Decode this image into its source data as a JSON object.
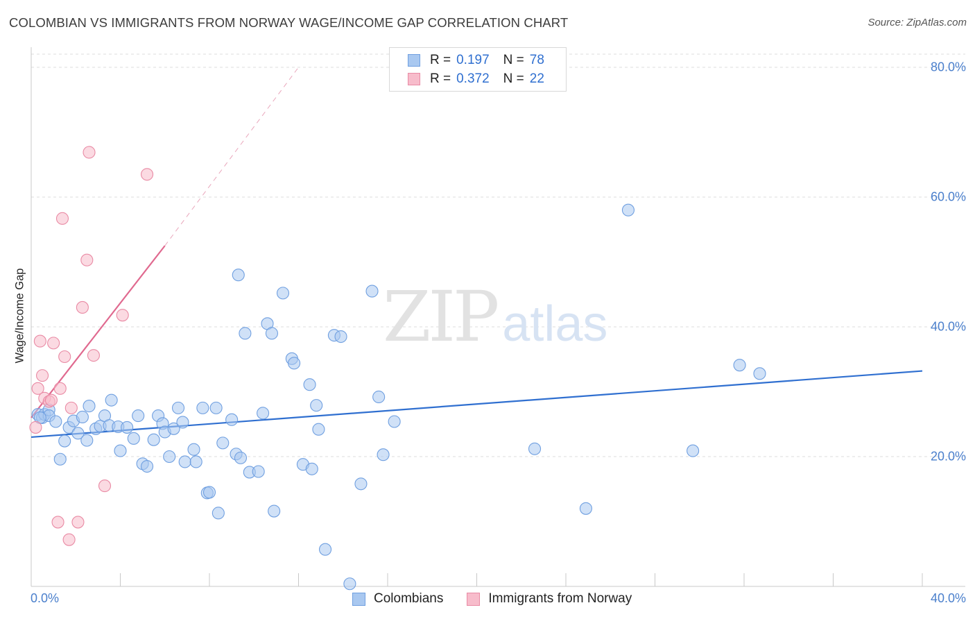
{
  "title": "COLOMBIAN VS IMMIGRANTS FROM NORWAY WAGE/INCOME GAP CORRELATION CHART",
  "source": "Source: ZipAtlas.com",
  "watermark": {
    "zip": "ZIP",
    "atlas": "atlas"
  },
  "legend": {
    "rows": [
      {
        "r_label": "R =",
        "r_value": "0.197",
        "n_label": "N =",
        "n_value": "78",
        "color": "#a9c8f0",
        "border": "#6f9fe0"
      },
      {
        "r_label": "R =",
        "r_value": "0.372",
        "n_label": "N =",
        "n_value": "22",
        "color": "#f7bccb",
        "border": "#e98aa4"
      }
    ]
  },
  "bottom_legend": [
    {
      "label": "Colombians",
      "color": "#a9c8f0",
      "border": "#6f9fe0"
    },
    {
      "label": "Immigrants from Norway",
      "color": "#f7bccb",
      "border": "#e98aa4"
    }
  ],
  "chart_data": {
    "type": "scatter",
    "title": "COLOMBIAN VS IMMIGRANTS FROM NORWAY WAGE/INCOME GAP CORRELATION CHART",
    "xlabel": "",
    "ylabel": "Wage/Income Gap",
    "xlim": [
      0,
      40
    ],
    "ylim": [
      0,
      82
    ],
    "x_tick_labels": [
      {
        "value": 0,
        "label": "0.0%"
      },
      {
        "value": 40,
        "label": "40.0%"
      }
    ],
    "y_tick_labels": [
      {
        "value": 20,
        "label": "20.0%"
      },
      {
        "value": 40,
        "label": "40.0%"
      },
      {
        "value": 60,
        "label": "60.0%"
      },
      {
        "value": 80,
        "label": "80.0%"
      }
    ],
    "grid": true,
    "series": [
      {
        "name": "Colombians",
        "color": "#6f9fe0",
        "fill": "#a9c8f0",
        "trend": {
          "x": [
            0,
            40
          ],
          "y": [
            23.0,
            33.2
          ],
          "color": "#2f6fd0"
        },
        "points": [
          [
            0.3,
            26.5
          ],
          [
            0.5,
            26.0
          ],
          [
            0.6,
            26.5
          ],
          [
            0.8,
            27.2
          ],
          [
            0.8,
            26.3
          ],
          [
            1.1,
            25.4
          ],
          [
            1.3,
            19.6
          ],
          [
            1.5,
            22.4
          ],
          [
            1.7,
            24.5
          ],
          [
            1.9,
            25.5
          ],
          [
            2.1,
            23.6
          ],
          [
            2.3,
            26.1
          ],
          [
            2.5,
            22.5
          ],
          [
            2.6,
            27.8
          ],
          [
            2.9,
            24.3
          ],
          [
            3.1,
            24.7
          ],
          [
            3.3,
            26.3
          ],
          [
            3.5,
            24.8
          ],
          [
            3.6,
            28.7
          ],
          [
            3.9,
            24.6
          ],
          [
            4.0,
            20.9
          ],
          [
            4.3,
            24.5
          ],
          [
            4.6,
            22.8
          ],
          [
            4.8,
            26.3
          ],
          [
            5.0,
            18.9
          ],
          [
            5.2,
            18.5
          ],
          [
            5.5,
            22.6
          ],
          [
            5.7,
            26.3
          ],
          [
            5.9,
            25.1
          ],
          [
            6.0,
            23.8
          ],
          [
            6.2,
            20.0
          ],
          [
            6.4,
            24.3
          ],
          [
            6.6,
            27.5
          ],
          [
            6.8,
            25.3
          ],
          [
            6.9,
            19.2
          ],
          [
            7.3,
            21.1
          ],
          [
            7.4,
            19.2
          ],
          [
            7.7,
            27.5
          ],
          [
            7.9,
            14.4
          ],
          [
            8.0,
            14.5
          ],
          [
            8.3,
            27.5
          ],
          [
            8.4,
            11.3
          ],
          [
            8.6,
            22.1
          ],
          [
            9.0,
            25.7
          ],
          [
            9.2,
            20.4
          ],
          [
            9.3,
            48.0
          ],
          [
            9.4,
            19.8
          ],
          [
            9.6,
            39.0
          ],
          [
            9.8,
            17.6
          ],
          [
            10.2,
            17.7
          ],
          [
            10.4,
            26.7
          ],
          [
            10.6,
            40.5
          ],
          [
            10.8,
            39.0
          ],
          [
            10.9,
            11.6
          ],
          [
            11.3,
            45.2
          ],
          [
            11.7,
            35.1
          ],
          [
            11.8,
            34.4
          ],
          [
            12.2,
            18.8
          ],
          [
            12.5,
            31.1
          ],
          [
            12.6,
            18.1
          ],
          [
            12.8,
            27.9
          ],
          [
            12.9,
            24.2
          ],
          [
            13.2,
            5.7
          ],
          [
            13.6,
            38.7
          ],
          [
            13.9,
            38.5
          ],
          [
            14.3,
            0.4
          ],
          [
            14.8,
            15.8
          ],
          [
            15.3,
            45.5
          ],
          [
            15.6,
            29.2
          ],
          [
            15.8,
            20.3
          ],
          [
            16.3,
            25.4
          ],
          [
            22.6,
            21.2
          ],
          [
            24.9,
            12.0
          ],
          [
            26.8,
            58.0
          ],
          [
            29.7,
            20.9
          ],
          [
            31.8,
            34.1
          ],
          [
            32.7,
            32.8
          ],
          [
            0.4,
            26.0
          ]
        ]
      },
      {
        "name": "Immigrants from Norway",
        "color": "#e98aa4",
        "fill": "#f7bccb",
        "trend": {
          "x": [
            0,
            6.0
          ],
          "y": [
            26.0,
            52.5
          ],
          "dash_to": [
            12.0,
            80.0
          ],
          "color": "#e0698f"
        },
        "points": [
          [
            0.2,
            24.5
          ],
          [
            0.3,
            30.5
          ],
          [
            0.4,
            37.8
          ],
          [
            0.5,
            32.5
          ],
          [
            0.6,
            29.0
          ],
          [
            0.8,
            28.5
          ],
          [
            1.0,
            37.5
          ],
          [
            1.2,
            9.9
          ],
          [
            1.3,
            30.5
          ],
          [
            1.4,
            56.7
          ],
          [
            1.5,
            35.4
          ],
          [
            1.7,
            7.2
          ],
          [
            1.8,
            27.5
          ],
          [
            2.1,
            9.9
          ],
          [
            2.3,
            43.0
          ],
          [
            2.5,
            50.3
          ],
          [
            2.6,
            66.9
          ],
          [
            2.8,
            35.6
          ],
          [
            3.3,
            15.5
          ],
          [
            4.1,
            41.8
          ],
          [
            5.2,
            63.5
          ],
          [
            0.9,
            28.7
          ]
        ]
      }
    ]
  }
}
